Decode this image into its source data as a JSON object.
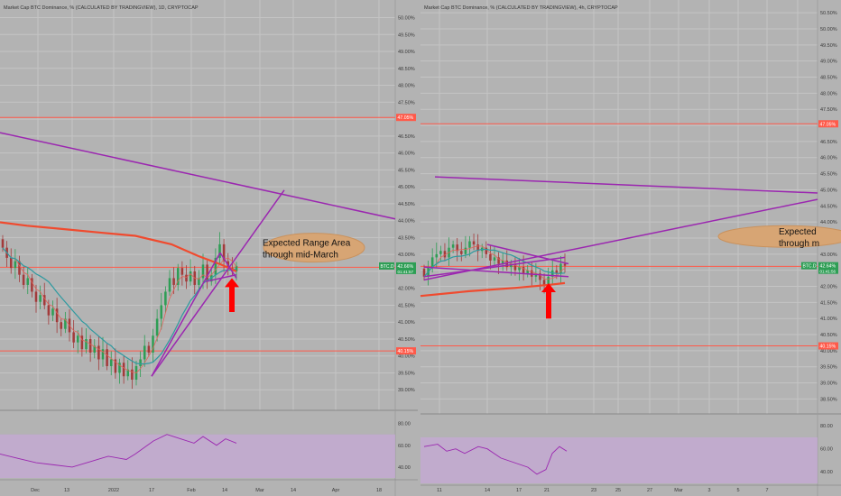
{
  "colors": {
    "background": "#b3b3b3",
    "grid": "#c4c4c4",
    "axis_text": "#3a3a3a",
    "candle_up": "#2e9e55",
    "candle_down": "#a33a3a",
    "ma_long": "#f04a2e",
    "ma_mid": "#2e9aa0",
    "ma_short": "#e0645a",
    "trendline": "#9b27b0",
    "hline": "#ff5a4a",
    "ellipse_fill": "#d7a574",
    "ellipse_stroke": "#c9925e",
    "arrow": "#ff0000",
    "rsi_band": "#c8a8d8",
    "rsi_line": "#9b27b0",
    "price_tag": "#2e9e55",
    "level_tag": "#ff5a4a"
  },
  "left_panel": {
    "title": "Market Cap BTC Dominance, % (CALCULATED BY TRADINGVIEW), 1D, CRYPTOCAP",
    "y_axis_ticks": [
      "50.00%",
      "49.50%",
      "49.00%",
      "48.50%",
      "48.00%",
      "47.50%",
      "47.00%",
      "46.50%",
      "46.00%",
      "45.50%",
      "45.00%",
      "44.50%",
      "44.00%",
      "43.50%",
      "43.00%",
      "42.50%",
      "42.00%",
      "41.50%",
      "41.00%",
      "40.50%",
      "40.00%",
      "39.50%",
      "39.00%"
    ],
    "x_axis_ticks": [
      "Dec",
      "13",
      "2022",
      "17",
      "Feb",
      "14",
      "Mar",
      "14",
      "Apr",
      "18"
    ],
    "rsi_ticks": [
      "80.00",
      "60.00",
      "40.00"
    ],
    "price_tag": {
      "label": "BTC.D",
      "value": "42.66%",
      "countdown": "01:41:57"
    },
    "level_tags": [
      "47.05%",
      "42.62%",
      "40.15%"
    ],
    "annotation": [
      "Expected Range Area",
      "through mid-March"
    ]
  },
  "right_panel": {
    "title": "Market Cap BTC Dominance, % (CALCULATED BY TRADINGVIEW), 4h, CRYPTOCAP",
    "y_axis_ticks": [
      "50.50%",
      "50.00%",
      "49.50%",
      "49.00%",
      "48.50%",
      "48.00%",
      "47.50%",
      "47.00%",
      "46.50%",
      "46.00%",
      "45.50%",
      "45.00%",
      "44.50%",
      "44.00%",
      "43.50%",
      "43.00%",
      "42.50%",
      "42.00%",
      "41.50%",
      "41.00%",
      "40.50%",
      "40.00%",
      "39.50%",
      "39.00%",
      "38.50%"
    ],
    "x_axis_ticks": [
      "11",
      "14",
      "17",
      "21",
      "23",
      "25",
      "27",
      "Mar",
      "3",
      "5",
      "7"
    ],
    "rsi_ticks": [
      "80.00",
      "60.00",
      "40.00"
    ],
    "price_tag": {
      "label": "BTC.D",
      "value": "42.64%",
      "countdown": "01:41:56"
    },
    "level_tags": [
      "47.05%",
      "42.62%",
      "40.15%"
    ],
    "annotation": [
      "Expected",
      "through m"
    ]
  },
  "chart_data": [
    {
      "type": "candlestick",
      "title": "Market Cap BTC Dominance, % (CALCULATED BY TRADINGVIEW), 1D, CRYPTOCAP",
      "ylim": [
        38.9,
        50.2
      ],
      "horizontal_levels": [
        47.05,
        42.62,
        40.15
      ],
      "last_price": 42.66,
      "ohlc_close_approx": [
        43.2,
        42.9,
        42.6,
        42.8,
        42.4,
        42.1,
        42.3,
        41.9,
        41.6,
        41.8,
        41.5,
        41.2,
        41.4,
        41.0,
        40.8,
        41.1,
        40.7,
        40.4,
        40.6,
        40.2,
        40.5,
        40.1,
        40.3,
        39.9,
        40.2,
        39.7,
        39.9,
        39.5,
        39.8,
        39.4,
        39.6,
        39.3,
        39.7,
        39.9,
        40.3,
        40.1,
        40.6,
        41.1,
        41.5,
        41.9,
        42.3,
        42.1,
        42.6,
        42.4,
        42.2,
        42.5,
        42.1,
        42.3,
        42.7,
        42.2,
        42.4,
        42.9,
        43.3,
        42.8,
        42.6,
        42.5,
        42.66
      ],
      "rsi_range": [
        40,
        80
      ]
    },
    {
      "type": "candlestick",
      "title": "Market Cap BTC Dominance, % (CALCULATED BY TRADINGVIEW), 4h, CRYPTOCAP",
      "ylim": [
        38.4,
        50.7
      ],
      "horizontal_levels": [
        47.05,
        42.62,
        40.15
      ],
      "last_price": 42.64,
      "ohlc_close_approx": [
        42.3,
        42.6,
        42.9,
        43.0,
        43.1,
        42.9,
        43.2,
        43.3,
        43.1,
        43.0,
        43.2,
        43.4,
        43.3,
        43.1,
        43.2,
        43.0,
        42.8,
        42.9,
        42.7,
        42.8,
        42.6,
        42.7,
        42.5,
        42.6,
        42.4,
        42.5,
        42.3,
        42.4,
        42.2,
        42.0,
        42.3,
        42.5,
        42.4,
        42.7,
        42.64
      ],
      "rsi_range": [
        40,
        80
      ]
    }
  ]
}
